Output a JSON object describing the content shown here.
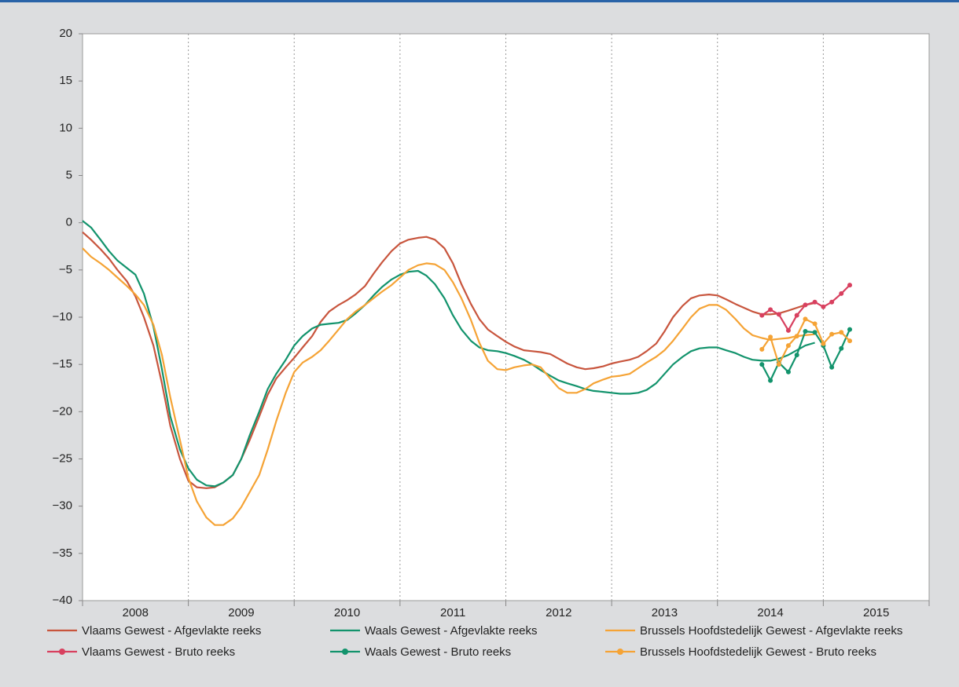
{
  "chart_data": {
    "type": "line",
    "x": [
      2008.0,
      2008.08,
      2008.17,
      2008.25,
      2008.33,
      2008.42,
      2008.5,
      2008.58,
      2008.67,
      2008.75,
      2008.83,
      2008.92,
      2009.0,
      2009.08,
      2009.17,
      2009.25,
      2009.33,
      2009.42,
      2009.5,
      2009.58,
      2009.67,
      2009.75,
      2009.83,
      2009.92,
      2010.0,
      2010.08,
      2010.17,
      2010.25,
      2010.33,
      2010.42,
      2010.5,
      2010.58,
      2010.67,
      2010.75,
      2010.83,
      2010.92,
      2011.0,
      2011.08,
      2011.17,
      2011.25,
      2011.33,
      2011.42,
      2011.5,
      2011.58,
      2011.67,
      2011.75,
      2011.83,
      2011.92,
      2012.0,
      2012.08,
      2012.17,
      2012.25,
      2012.33,
      2012.42,
      2012.5,
      2012.58,
      2012.67,
      2012.75,
      2012.83,
      2012.92,
      2013.0,
      2013.08,
      2013.17,
      2013.25,
      2013.33,
      2013.42,
      2013.5,
      2013.58,
      2013.67,
      2013.75,
      2013.83,
      2013.92,
      2014.0,
      2014.08,
      2014.17,
      2014.25,
      2014.33,
      2014.42,
      2014.5,
      2014.58,
      2014.67,
      2014.75,
      2014.83,
      2014.92,
      2015.0,
      2015.08,
      2015.17,
      2015.25
    ],
    "categories": [
      "2008",
      "2009",
      "2010",
      "2011",
      "2012",
      "2013",
      "2014",
      "2015"
    ],
    "xlim": [
      2008,
      2016
    ],
    "xticks": [
      2008,
      2009,
      2010,
      2011,
      2012,
      2013,
      2014,
      2015,
      2016
    ],
    "ylim": [
      -40,
      20
    ],
    "yticks": [
      {
        "value": -40,
        "label": "−40"
      },
      {
        "value": -35,
        "label": "−35"
      },
      {
        "value": -30,
        "label": "−30"
      },
      {
        "value": -25,
        "label": "−25"
      },
      {
        "value": -20,
        "label": "−20"
      },
      {
        "value": -15,
        "label": "−15"
      },
      {
        "value": -10,
        "label": "−10"
      },
      {
        "value": -5,
        "label": "−5"
      },
      0,
      5,
      10,
      15,
      20
    ],
    "grid": "x",
    "series": [
      {
        "name": "Vlaams Gewest - Afgevlakte reeks",
        "color": "#c8553d",
        "values": [
          -1,
          -1.8,
          -2.8,
          -3.8,
          -5,
          -6.2,
          -7.8,
          -10,
          -13,
          -17,
          -21.5,
          -25,
          -27.3,
          -28,
          -28.1,
          -28,
          -27.5,
          -26.7,
          -25,
          -23,
          -20.5,
          -18.2,
          -16.5,
          -15.3,
          -14.3,
          -13.2,
          -12,
          -10.5,
          -9.4,
          -8.7,
          -8.2,
          -7.6,
          -6.7,
          -5.4,
          -4.2,
          -3,
          -2.2,
          -1.8,
          -1.6,
          -1.5,
          -1.8,
          -2.7,
          -4.3,
          -6.5,
          -8.6,
          -10.2,
          -11.3,
          -12,
          -12.6,
          -13.1,
          -13.5,
          -13.6,
          -13.7,
          -13.9,
          -14.4,
          -14.9,
          -15.3,
          -15.5,
          -15.4,
          -15.2,
          -14.9,
          -14.7,
          -14.5,
          -14.2,
          -13.6,
          -12.8,
          -11.5,
          -10,
          -8.8,
          -8,
          -7.7,
          -7.6,
          -7.7,
          -8.1,
          -8.6,
          -9,
          -9.4,
          -9.7,
          -9.7,
          -9.6,
          -9.3,
          -9,
          -8.7,
          -8.5,
          null,
          null,
          null,
          null
        ]
      },
      {
        "name": "Vlaams Gewest - Bruto reeks",
        "color": "#d8405f",
        "marker": "circle",
        "values": [
          null,
          null,
          null,
          null,
          null,
          null,
          null,
          null,
          null,
          null,
          null,
          null,
          null,
          null,
          null,
          null,
          null,
          null,
          null,
          null,
          null,
          null,
          null,
          null,
          null,
          null,
          null,
          null,
          null,
          null,
          null,
          null,
          null,
          null,
          null,
          null,
          null,
          null,
          null,
          null,
          null,
          null,
          null,
          null,
          null,
          null,
          null,
          null,
          null,
          null,
          null,
          null,
          null,
          null,
          null,
          null,
          null,
          null,
          null,
          null,
          null,
          null,
          null,
          null,
          null,
          null,
          null,
          null,
          null,
          null,
          null,
          null,
          null,
          null,
          null,
          null,
          null,
          -9.8,
          -9.2,
          -9.7,
          -11.4,
          -9.8,
          -8.7,
          -8.4,
          -8.9,
          -8.4,
          -7.5,
          -6.6
        ]
      },
      {
        "name": "Waals Gewest - Afgevlakte reeks",
        "color": "#12936c",
        "values": [
          0.2,
          -0.5,
          -1.8,
          -3,
          -4,
          -4.8,
          -5.5,
          -7.5,
          -11,
          -15.5,
          -20.5,
          -24,
          -26,
          -27.2,
          -27.8,
          -27.9,
          -27.5,
          -26.7,
          -25,
          -22.5,
          -20,
          -17.6,
          -16,
          -14.5,
          -13,
          -12,
          -11.2,
          -10.8,
          -10.7,
          -10.6,
          -10.3,
          -9.6,
          -8.7,
          -7.7,
          -6.8,
          -6,
          -5.5,
          -5.2,
          -5.1,
          -5.6,
          -6.5,
          -8,
          -9.8,
          -11.3,
          -12.5,
          -13.2,
          -13.5,
          -13.6,
          -13.8,
          -14.1,
          -14.5,
          -15,
          -15.6,
          -16.2,
          -16.7,
          -17,
          -17.3,
          -17.6,
          -17.8,
          -17.9,
          -18,
          -18.1,
          -18.1,
          -18,
          -17.7,
          -17,
          -16,
          -15,
          -14.2,
          -13.6,
          -13.3,
          -13.2,
          -13.2,
          -13.5,
          -13.8,
          -14.2,
          -14.5,
          -14.6,
          -14.6,
          -14.4,
          -14,
          -13.5,
          -13,
          -12.7,
          null,
          null,
          null,
          null
        ]
      },
      {
        "name": "Waals Gewest - Bruto reeks",
        "color": "#12936c",
        "marker": "circle",
        "values": [
          null,
          null,
          null,
          null,
          null,
          null,
          null,
          null,
          null,
          null,
          null,
          null,
          null,
          null,
          null,
          null,
          null,
          null,
          null,
          null,
          null,
          null,
          null,
          null,
          null,
          null,
          null,
          null,
          null,
          null,
          null,
          null,
          null,
          null,
          null,
          null,
          null,
          null,
          null,
          null,
          null,
          null,
          null,
          null,
          null,
          null,
          null,
          null,
          null,
          null,
          null,
          null,
          null,
          null,
          null,
          null,
          null,
          null,
          null,
          null,
          null,
          null,
          null,
          null,
          null,
          null,
          null,
          null,
          null,
          null,
          null,
          null,
          null,
          null,
          null,
          null,
          null,
          -15,
          -16.7,
          -14.8,
          -15.8,
          -14,
          -11.5,
          -11.6,
          -13,
          -15.3,
          -13.3,
          -11.3
        ]
      },
      {
        "name": "Brussels Hoofdstedelijk Gewest - Afgevlakte reeks",
        "color": "#f5a335",
        "values": [
          -2.7,
          -3.6,
          -4.3,
          -5,
          -5.8,
          -6.7,
          -7.6,
          -8.7,
          -10.8,
          -14,
          -18.5,
          -23,
          -27,
          -29.5,
          -31.2,
          -32,
          -32,
          -31.3,
          -30.1,
          -28.5,
          -26.7,
          -24,
          -21,
          -18,
          -15.8,
          -14.8,
          -14.2,
          -13.5,
          -12.5,
          -11.3,
          -10.2,
          -9.4,
          -8.7,
          -8,
          -7.3,
          -6.6,
          -5.8,
          -5,
          -4.5,
          -4.3,
          -4.4,
          -5,
          -6.3,
          -8,
          -10.3,
          -12.7,
          -14.6,
          -15.5,
          -15.6,
          -15.3,
          -15.1,
          -15,
          -15.3,
          -16.5,
          -17.5,
          -18,
          -18,
          -17.6,
          -17,
          -16.6,
          -16.3,
          -16.2,
          -16,
          -15.4,
          -14.8,
          -14.2,
          -13.5,
          -12.5,
          -11.2,
          -10,
          -9.1,
          -8.7,
          -8.7,
          -9.2,
          -10.2,
          -11.2,
          -11.9,
          -12.2,
          -12.4,
          -12.3,
          -12.2,
          -12,
          -11.9,
          -11.8,
          null,
          null,
          null,
          null
        ]
      },
      {
        "name": "Brussels Hoofdstedelijk Gewest - Bruto reeks",
        "color": "#f5a335",
        "marker": "circle",
        "values": [
          null,
          null,
          null,
          null,
          null,
          null,
          null,
          null,
          null,
          null,
          null,
          null,
          null,
          null,
          null,
          null,
          null,
          null,
          null,
          null,
          null,
          null,
          null,
          null,
          null,
          null,
          null,
          null,
          null,
          null,
          null,
          null,
          null,
          null,
          null,
          null,
          null,
          null,
          null,
          null,
          null,
          null,
          null,
          null,
          null,
          null,
          null,
          null,
          null,
          null,
          null,
          null,
          null,
          null,
          null,
          null,
          null,
          null,
          null,
          null,
          null,
          null,
          null,
          null,
          null,
          null,
          null,
          null,
          null,
          null,
          null,
          null,
          null,
          null,
          null,
          null,
          null,
          -13.4,
          -12.1,
          -15,
          -13,
          -12,
          -10.2,
          -10.7,
          -12.8,
          -11.8,
          -11.6,
          -12.5
        ]
      }
    ]
  }
}
